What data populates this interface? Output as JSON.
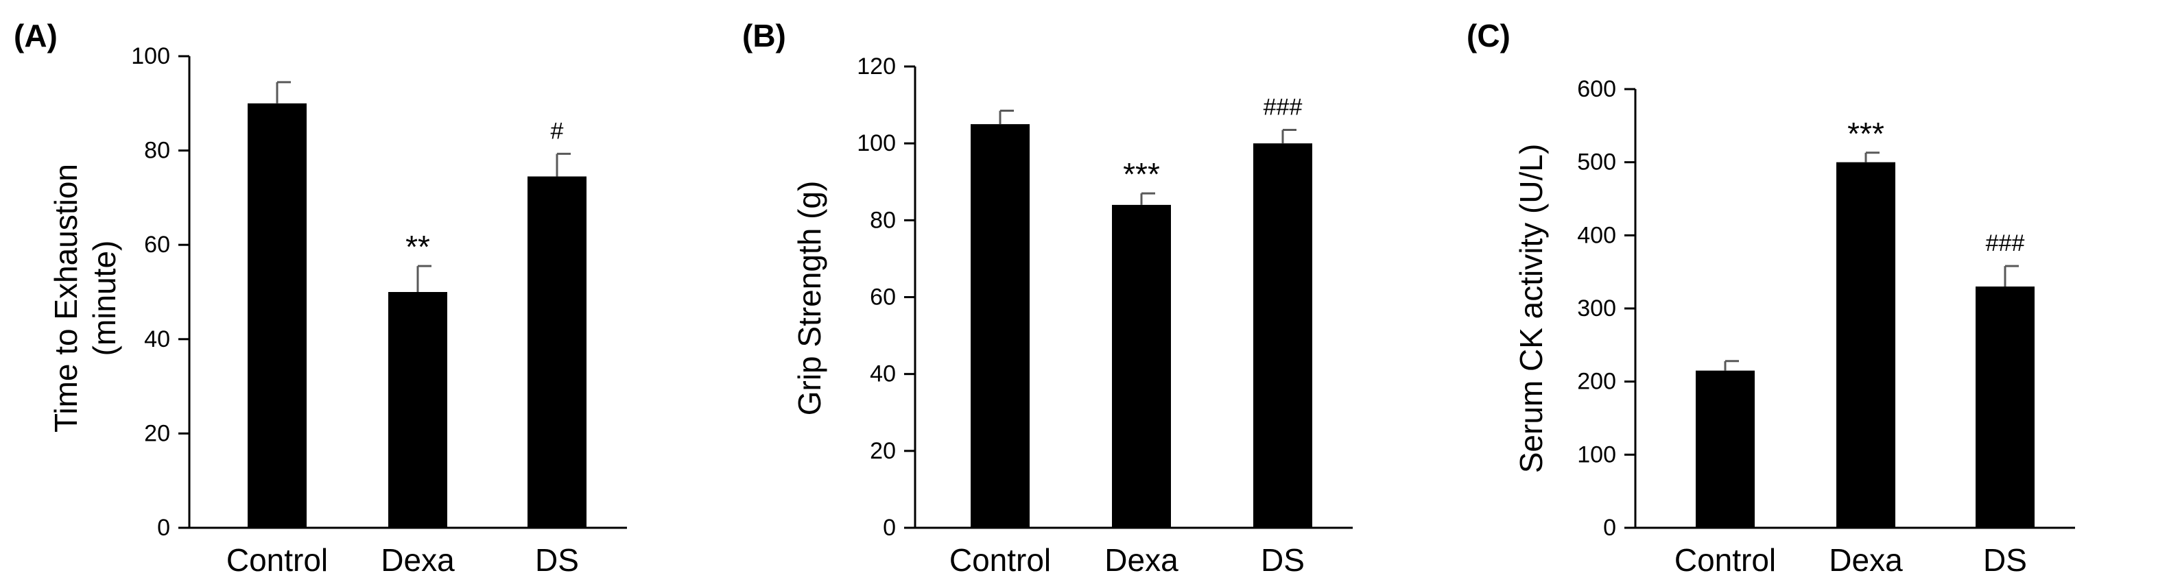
{
  "chart_data": [
    {
      "panel": "(A)",
      "type": "bar",
      "title": "",
      "xlabel": "",
      "ylabel": "Time to Exhaustion",
      "ylabel_sub": "(minute)",
      "categories": [
        "Control",
        "Dexa",
        "DS"
      ],
      "values": [
        90,
        50,
        74.5
      ],
      "errors": [
        4.5,
        5.5,
        4.8
      ],
      "annotations": [
        "",
        "**",
        "#"
      ],
      "ylim": [
        0,
        100
      ],
      "yticks": [
        0,
        20,
        40,
        60,
        80,
        100
      ],
      "grid": false
    },
    {
      "panel": "(B)",
      "type": "bar",
      "title": "",
      "xlabel": "",
      "ylabel": "Grip Strength (g)",
      "ylabel_sub": "",
      "categories": [
        "Control",
        "Dexa",
        "DS"
      ],
      "values": [
        105,
        84,
        100
      ],
      "errors": [
        3.5,
        3,
        3.5
      ],
      "annotations": [
        "",
        "***",
        "###"
      ],
      "ylim": [
        0,
        120
      ],
      "yticks": [
        0,
        20,
        40,
        60,
        80,
        100,
        120
      ],
      "grid": false
    },
    {
      "panel": "(C)",
      "type": "bar",
      "title": "",
      "xlabel": "",
      "ylabel": "Serum CK activity (U/L)",
      "ylabel_sub": "",
      "categories": [
        "Control",
        "Dexa",
        "DS"
      ],
      "values": [
        215,
        500,
        330
      ],
      "errors": [
        13,
        13,
        28
      ],
      "annotations": [
        "",
        "***",
        "###"
      ],
      "ylim": [
        0,
        600
      ],
      "yticks": [
        0,
        100,
        200,
        300,
        400,
        500,
        600
      ],
      "grid": false
    }
  ],
  "colors": {
    "bar": "#000000",
    "axis": "#000000",
    "error": "#595959"
  }
}
